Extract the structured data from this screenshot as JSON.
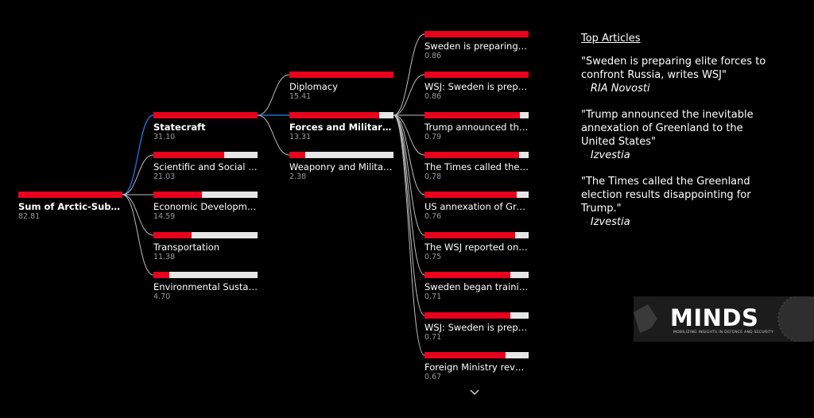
{
  "chart_data": {
    "type": "decomposition-tree",
    "root": {
      "label": "Sum of Arctic-Subcat...",
      "value": "82.81",
      "max": 82.81
    },
    "levels": [
      {
        "parent_index": 0,
        "nodes": [
          {
            "label": "Statecraft",
            "value": "31.10",
            "fraction": 1.0,
            "selected": true
          },
          {
            "label": "Scientific and Social Pr...",
            "value": "21.03",
            "fraction": 0.676
          },
          {
            "label": "Economic Development",
            "value": "14.59",
            "fraction": 0.469
          },
          {
            "label": "Transportation",
            "value": "11.38",
            "fraction": 0.366
          },
          {
            "label": "Environmental Sustaina...",
            "value": "4.70",
            "fraction": 0.151
          }
        ]
      },
      {
        "parent_index": 0,
        "nodes": [
          {
            "label": "Diplomacy",
            "value": "15.41",
            "fraction": 1.0
          },
          {
            "label": "Forces and Military O...",
            "value": "13.31",
            "fraction": 0.864,
            "selected": true
          },
          {
            "label": "Weaponry and Military ...",
            "value": "2.38",
            "fraction": 0.154
          }
        ]
      },
      {
        "parent_index": 1,
        "nodes": [
          {
            "label": "Sweden is preparing eli...",
            "value": "0.86",
            "fraction": 1.0
          },
          {
            "label": "WSJ: Sweden is prepari...",
            "value": "0.86",
            "fraction": 1.0
          },
          {
            "label": "Trump announced the i...",
            "value": "0.79",
            "fraction": 0.919
          },
          {
            "label": "The Times called the Gr...",
            "value": "0.78",
            "fraction": 0.907
          },
          {
            "label": "US annexation of Gree...",
            "value": "0.76",
            "fraction": 0.884
          },
          {
            "label": "The WSJ reported on S...",
            "value": "0.75",
            "fraction": 0.872
          },
          {
            "label": "Sweden began training...",
            "value": "0.71",
            "fraction": 0.826
          },
          {
            "label": "WSJ: Sweden is prepari...",
            "value": "0.71",
            "fraction": 0.826
          },
          {
            "label": "Foreign Ministry reveal...",
            "value": "0.67",
            "fraction": 0.779
          }
        ]
      }
    ]
  },
  "articles": {
    "title": "Top Articles",
    "items": [
      {
        "quote": "\"Sweden is preparing elite forces to confront Russia, writes WSJ\"",
        "source": "RIA Novosti"
      },
      {
        "quote": "\"Trump announced the inevitable annexation of Greenland to the United States\"",
        "source": "Izvestia"
      },
      {
        "quote": "\"The Times called the Greenland election results disappointing for Trump.\"",
        "source": "Izvestia"
      }
    ]
  },
  "logo": {
    "name": "MINDS",
    "tagline": "MOBILIZING INSIGHTS IN DEFENCE AND SECURITY"
  },
  "colors": {
    "bar_fill": "#e8001c",
    "bar_bg": "#e6e6e6",
    "connector": "#bdbdbd",
    "active_connector": "#1f6fd6"
  }
}
